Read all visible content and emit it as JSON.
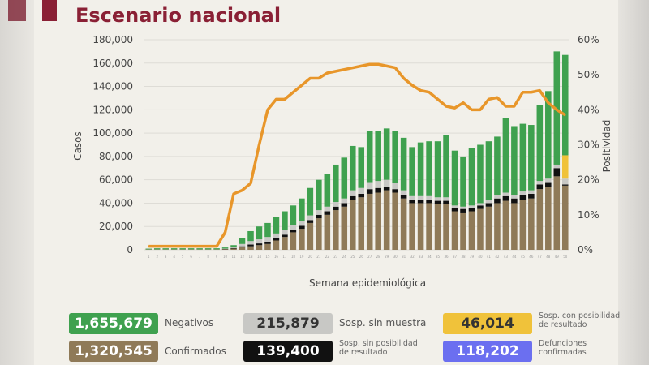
{
  "header": {
    "title": "Escenario nacional"
  },
  "colors": {
    "negativos": "#3fa14f",
    "sin_muestra": "#c8c8c5",
    "con_posibilidad": "#f0c23a",
    "confirmados": "#8f7a58",
    "sin_posibilidad": "#111111",
    "defunciones": "#6b6ff0",
    "positividad": "#e8962a",
    "title": "#8a2035"
  },
  "chart_data": {
    "type": "bar",
    "stacked": true,
    "xlabel": "Semana epidemiológica",
    "ylabel": "Casos",
    "y2label": "Positividad",
    "ylim": [
      0,
      180000
    ],
    "y2lim": [
      0,
      60
    ],
    "yticks": [
      "0",
      "20,000",
      "40,000",
      "60,000",
      "80,000",
      "100,000",
      "120,000",
      "140,000",
      "160,000",
      "180,000"
    ],
    "y2ticks": [
      "0%",
      "10%",
      "20%",
      "30%",
      "40%",
      "50%",
      "60%"
    ],
    "grid": true,
    "categories": [
      1,
      2,
      3,
      4,
      5,
      6,
      7,
      8,
      9,
      10,
      11,
      12,
      13,
      14,
      15,
      16,
      17,
      18,
      19,
      20,
      21,
      22,
      23,
      24,
      25,
      26,
      27,
      28,
      29,
      30,
      31,
      32,
      33,
      34,
      35,
      36,
      37,
      38,
      39,
      40,
      41,
      42,
      43,
      44,
      45,
      46,
      47,
      48,
      49,
      50
    ],
    "series": [
      {
        "name": "Confirmados",
        "key": "confirmados",
        "values": [
          300,
          300,
          300,
          300,
          300,
          300,
          300,
          300,
          300,
          500,
          1000,
          2000,
          3000,
          4000,
          5000,
          8000,
          11000,
          15000,
          18000,
          23000,
          27000,
          30000,
          34000,
          37000,
          43000,
          45000,
          48000,
          49000,
          51000,
          49000,
          44000,
          40000,
          40000,
          40000,
          39000,
          39000,
          33000,
          32000,
          33000,
          35000,
          37000,
          40000,
          42000,
          40000,
          43000,
          44000,
          52000,
          54000,
          63000,
          55000
        ]
      },
      {
        "name": "Sosp. sin posibilidad de resultado",
        "key": "sin_posibilidad",
        "values": [
          0,
          0,
          0,
          0,
          0,
          0,
          0,
          0,
          0,
          200,
          500,
          1000,
          1500,
          1500,
          2000,
          2000,
          2000,
          2000,
          2500,
          2500,
          3000,
          3000,
          3000,
          3000,
          3000,
          3000,
          4000,
          4000,
          3000,
          3000,
          3000,
          3000,
          3000,
          3000,
          3000,
          3000,
          3000,
          3000,
          3000,
          3000,
          3000,
          4000,
          4000,
          4000,
          4000,
          4000,
          4000,
          4000,
          7000,
          1000
        ]
      },
      {
        "name": "Sosp. sin muestra",
        "key": "sin_muestra",
        "values": [
          100,
          100,
          100,
          100,
          100,
          100,
          100,
          100,
          100,
          300,
          500,
          2000,
          3000,
          3500,
          4000,
          4000,
          4000,
          4000,
          4000,
          4000,
          4000,
          4000,
          4000,
          4000,
          5000,
          5000,
          6000,
          6000,
          6000,
          5000,
          4000,
          3000,
          3000,
          3000,
          3000,
          3000,
          2000,
          2000,
          2000,
          2000,
          3000,
          3000,
          3000,
          3000,
          3000,
          3000,
          3000,
          3000,
          3000,
          5000
        ]
      },
      {
        "name": "Sosp. con posibilidad de resultado",
        "key": "con_posibilidad",
        "values": [
          0,
          0,
          0,
          0,
          0,
          0,
          0,
          0,
          0,
          0,
          0,
          0,
          0,
          0,
          0,
          0,
          0,
          0,
          0,
          0,
          0,
          0,
          0,
          0,
          0,
          0,
          0,
          0,
          0,
          0,
          0,
          0,
          0,
          0,
          0,
          0,
          0,
          0,
          0,
          0,
          0,
          0,
          0,
          0,
          0,
          0,
          0,
          0,
          0,
          20000
        ]
      },
      {
        "name": "Negativos",
        "key": "negativos",
        "values": [
          600,
          900,
          900,
          900,
          900,
          900,
          900,
          900,
          900,
          1000,
          2000,
          5000,
          8500,
          11000,
          12000,
          14000,
          16000,
          17000,
          19500,
          23500,
          26000,
          28000,
          32000,
          35000,
          38000,
          35000,
          44000,
          43000,
          44000,
          45000,
          45000,
          42000,
          46000,
          47000,
          48000,
          53000,
          47000,
          43000,
          49000,
          50000,
          50000,
          50000,
          64000,
          59000,
          58000,
          56000,
          65000,
          75000,
          97000,
          86000
        ]
      }
    ],
    "line": {
      "name": "Positividad",
      "axis": "right",
      "values": [
        1,
        1,
        1,
        1,
        1,
        1,
        1,
        1,
        1,
        5,
        16,
        17,
        19,
        30,
        40,
        43,
        43,
        45,
        47,
        49,
        49,
        50.5,
        51,
        51.5,
        52,
        52.5,
        53,
        53,
        52.5,
        52,
        49,
        47,
        45.5,
        45,
        43,
        41,
        40.5,
        42,
        40,
        40,
        43,
        43.5,
        41,
        41,
        45,
        45,
        45.5,
        42,
        40,
        38.5
      ]
    }
  },
  "legend": [
    {
      "value": "1,655,679",
      "label": "Negativos",
      "key": "negativos"
    },
    {
      "value": "215,879",
      "label": "Sosp. sin muestra",
      "key": "sin_muestra"
    },
    {
      "value": "46,014",
      "label": "Sosp. con posibilidad de resultado",
      "label_lines": [
        "Sosp. con posibilidad",
        "de resultado"
      ],
      "key": "con_posibilidad"
    },
    {
      "value": "1,320,545",
      "label": "Confirmados",
      "key": "confirmados"
    },
    {
      "value": "139,400",
      "label": "Sosp. sin posibilidad de resultado",
      "label_lines": [
        "Sosp. sin posibilidad",
        "de resultado"
      ],
      "key": "sin_posibilidad"
    },
    {
      "value": "118,202",
      "label": "Defunciones confirmadas",
      "label_lines": [
        "Defunciones",
        "confirmadas"
      ],
      "key": "defunciones"
    }
  ]
}
